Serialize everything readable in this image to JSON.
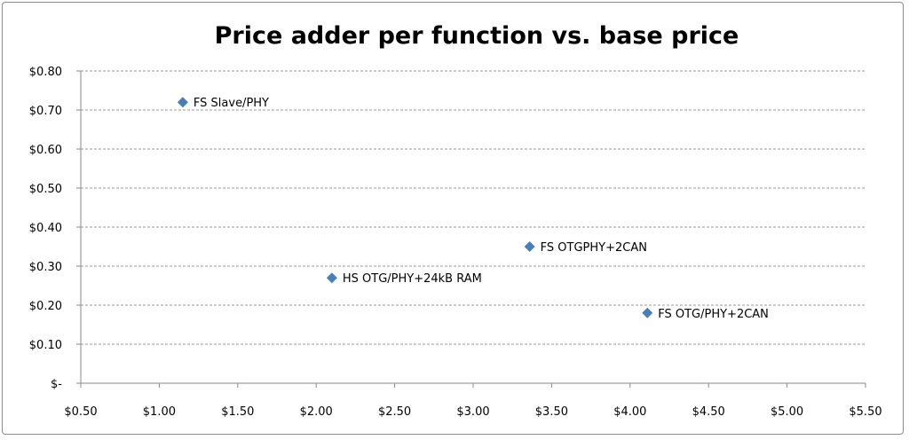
{
  "chart_data": {
    "type": "scatter",
    "title": "Price adder per function  vs. base price",
    "xlabel": "",
    "ylabel": "",
    "xlim": [
      0.5,
      5.5
    ],
    "ylim": [
      0,
      0.8
    ],
    "x_ticks": [
      {
        "value": 0.5,
        "label": "$0.50"
      },
      {
        "value": 1.0,
        "label": "$1.00"
      },
      {
        "value": 1.5,
        "label": "$1.50"
      },
      {
        "value": 2.0,
        "label": "$2.00"
      },
      {
        "value": 2.5,
        "label": "$2.50"
      },
      {
        "value": 3.0,
        "label": "$3.00"
      },
      {
        "value": 3.5,
        "label": "$3.50"
      },
      {
        "value": 4.0,
        "label": "$4.00"
      },
      {
        "value": 4.5,
        "label": "$4.50"
      },
      {
        "value": 5.0,
        "label": "$5.00"
      },
      {
        "value": 5.5,
        "label": "$5.50"
      }
    ],
    "y_ticks": [
      {
        "value": 0.0,
        "label": "$-"
      },
      {
        "value": 0.1,
        "label": "$0.10"
      },
      {
        "value": 0.2,
        "label": "$0.20"
      },
      {
        "value": 0.3,
        "label": "$0.30"
      },
      {
        "value": 0.4,
        "label": "$0.40"
      },
      {
        "value": 0.5,
        "label": "$0.50"
      },
      {
        "value": 0.6,
        "label": "$0.60"
      },
      {
        "value": 0.7,
        "label": "$0.70"
      },
      {
        "value": 0.8,
        "label": "$0.80"
      }
    ],
    "grid": true,
    "legend": "none",
    "marker_color": "#4a7ebb",
    "points": [
      {
        "x": 1.15,
        "y": 0.72,
        "label": "FS Slave/PHY"
      },
      {
        "x": 2.1,
        "y": 0.27,
        "label": "HS OTG/PHY+24kB RAM"
      },
      {
        "x": 3.36,
        "y": 0.35,
        "label": "FS OTGPHY+2CAN"
      },
      {
        "x": 4.11,
        "y": 0.18,
        "label": "FS OTG/PHY+2CAN"
      }
    ]
  }
}
